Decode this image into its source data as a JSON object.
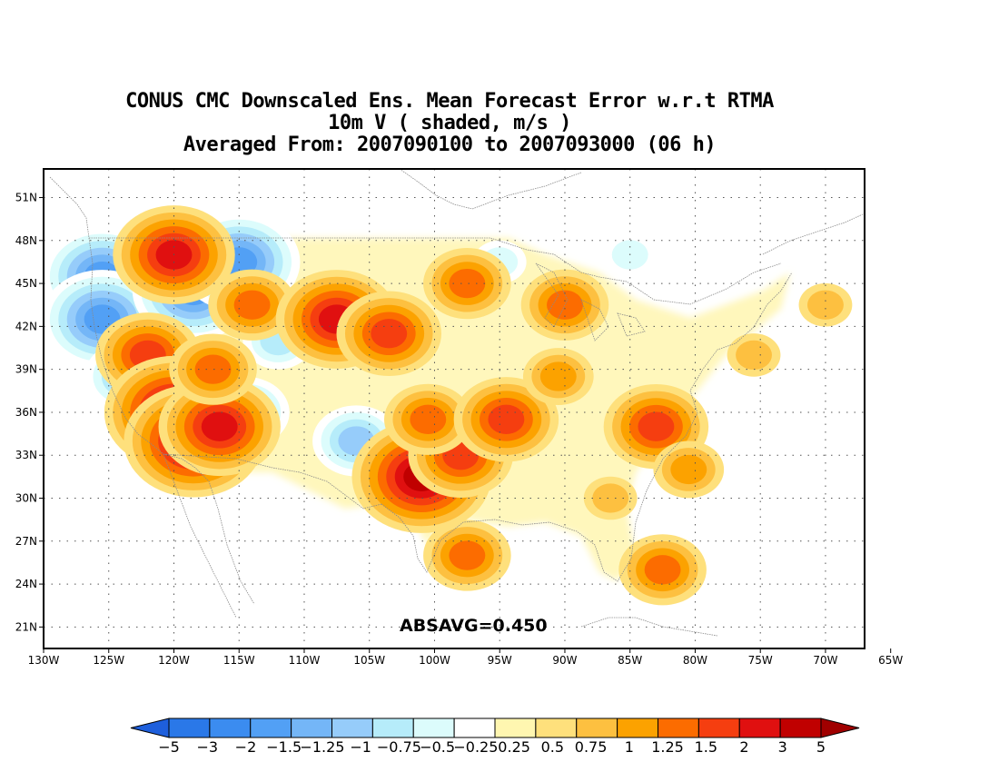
{
  "title": {
    "line1": "CONUS CMC Downscaled Ens. Mean Forecast Error w.r.t RTMA",
    "line2": "10m V ( shaded, m/s )",
    "line3": "Averaged From: 2007090100 to 2007093000 (06 h)"
  },
  "map": {
    "lon_range": [
      -130,
      -67
    ],
    "lat_range": [
      19.5,
      53
    ],
    "lat_ticks": [
      {
        "value": 51,
        "label": "51N"
      },
      {
        "value": 48,
        "label": "48N"
      },
      {
        "value": 45,
        "label": "45N"
      },
      {
        "value": 42,
        "label": "42N"
      },
      {
        "value": 39,
        "label": "39N"
      },
      {
        "value": 36,
        "label": "36N"
      },
      {
        "value": 33,
        "label": "33N"
      },
      {
        "value": 30,
        "label": "30N"
      },
      {
        "value": 27,
        "label": "27N"
      },
      {
        "value": 24,
        "label": "24N"
      },
      {
        "value": 21,
        "label": "21N"
      }
    ],
    "lon_ticks": [
      {
        "value": -130,
        "label": "130W"
      },
      {
        "value": -125,
        "label": "125W"
      },
      {
        "value": -120,
        "label": "120W"
      },
      {
        "value": -115,
        "label": "115W"
      },
      {
        "value": -110,
        "label": "110W"
      },
      {
        "value": -105,
        "label": "105W"
      },
      {
        "value": -100,
        "label": "100W"
      },
      {
        "value": -95,
        "label": "95W"
      },
      {
        "value": -90,
        "label": "90W"
      },
      {
        "value": -85,
        "label": "85W"
      },
      {
        "value": -80,
        "label": "80W"
      },
      {
        "value": -75,
        "label": "75W"
      },
      {
        "value": -70,
        "label": "70W"
      },
      {
        "value": -65,
        "label": "65W"
      }
    ],
    "grid": true,
    "absavg_text": "ABSAVG=0.450",
    "anomalies": [
      {
        "lon": -125.5,
        "lat": 45.5,
        "value": -1.5
      },
      {
        "lon": -125.5,
        "lat": 42.5,
        "value": -1.5
      },
      {
        "lon": -123.5,
        "lat": 38.5,
        "value": -1.0
      },
      {
        "lon": -121.0,
        "lat": 35.5,
        "value": -1.0
      },
      {
        "lon": -118.5,
        "lat": 44.5,
        "value": -1.5
      },
      {
        "lon": -115.0,
        "lat": 46.5,
        "value": -1.5
      },
      {
        "lon": -112.0,
        "lat": 41.0,
        "value": -0.75
      },
      {
        "lon": -114.5,
        "lat": 36.0,
        "value": -1.0
      },
      {
        "lon": -106.0,
        "lat": 34.0,
        "value": -1.0
      },
      {
        "lon": -95.0,
        "lat": 46.5,
        "value": -0.5
      },
      {
        "lon": -85.0,
        "lat": 47.0,
        "value": -0.5
      },
      {
        "lon": -120.0,
        "lat": 47.0,
        "value": 1.5
      },
      {
        "lon": -122.0,
        "lat": 40.0,
        "value": 1.25
      },
      {
        "lon": -120.0,
        "lat": 36.0,
        "value": 2.0
      },
      {
        "lon": -118.5,
        "lat": 34.0,
        "value": 2.0
      },
      {
        "lon": -116.5,
        "lat": 35.0,
        "value": 1.5
      },
      {
        "lon": -117.0,
        "lat": 39.0,
        "value": 1.0
      },
      {
        "lon": -114.0,
        "lat": 43.5,
        "value": 1.0
      },
      {
        "lon": -107.5,
        "lat": 42.5,
        "value": 1.5
      },
      {
        "lon": -103.5,
        "lat": 41.5,
        "value": 1.25
      },
      {
        "lon": -101.0,
        "lat": 31.5,
        "value": 2.0
      },
      {
        "lon": -98.0,
        "lat": 33.0,
        "value": 1.25
      },
      {
        "lon": -100.5,
        "lat": 35.5,
        "value": 1.0
      },
      {
        "lon": -94.5,
        "lat": 35.5,
        "value": 1.25
      },
      {
        "lon": -97.5,
        "lat": 45.0,
        "value": 1.0
      },
      {
        "lon": -90.0,
        "lat": 43.5,
        "value": 1.0
      },
      {
        "lon": -90.5,
        "lat": 38.5,
        "value": 0.75
      },
      {
        "lon": -83.0,
        "lat": 35.0,
        "value": 1.25
      },
      {
        "lon": -80.5,
        "lat": 32.0,
        "value": 0.75
      },
      {
        "lon": -82.5,
        "lat": 25.0,
        "value": 1.0
      },
      {
        "lon": -97.5,
        "lat": 26.0,
        "value": 1.0
      },
      {
        "lon": -75.5,
        "lat": 40.0,
        "value": 0.5
      },
      {
        "lon": -70.0,
        "lat": 43.5,
        "value": 0.5
      },
      {
        "lon": -86.5,
        "lat": 30.0,
        "value": 0.5
      }
    ]
  },
  "colorbar": {
    "labels": [
      "−5",
      "−3",
      "−2",
      "−1.5",
      "−1.25",
      "−1",
      "−0.75",
      "−0.5",
      "−0.25",
      "0.25",
      "0.5",
      "0.75",
      "1",
      "1.25",
      "1.5",
      "2",
      "3",
      "5"
    ],
    "colors": [
      "#1e5fdc",
      "#2a78e8",
      "#3b8cf0",
      "#52a0f5",
      "#74b6f7",
      "#96ccfa",
      "#b6ecfa",
      "#dcfcfc",
      "#ffffff",
      "#fff6b0",
      "#fee07c",
      "#fdc040",
      "#fca200",
      "#fc6c00",
      "#f53e10",
      "#e01010",
      "#c00000",
      "#a00000"
    ]
  }
}
